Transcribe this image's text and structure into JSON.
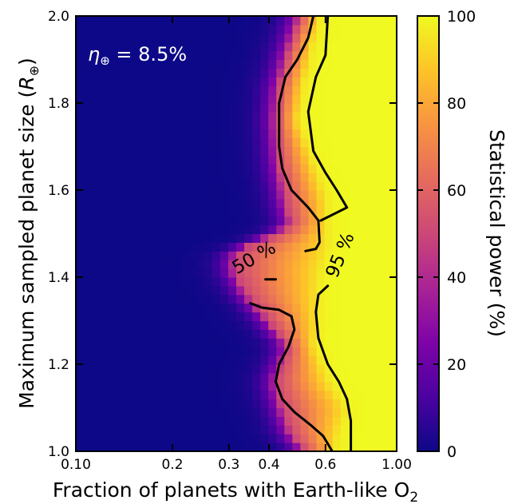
{
  "chart_data": {
    "type": "heatmap",
    "x_label": "Fraction of planets with Earth-like O",
    "x_label_subscript": "2",
    "y_label_main": "Maximum sampled planet size (",
    "y_label_var": "R",
    "y_label_sub": "⊕",
    "y_label_close": ")",
    "x_scale": "log",
    "x_range": [
      0.1,
      1.0
    ],
    "y_range": [
      1.0,
      2.0
    ],
    "x_ticks": [
      {
        "value": 0.1,
        "label": "0.10"
      },
      {
        "value": 0.2,
        "label": "0.2"
      },
      {
        "value": 0.3,
        "label": "0.3"
      },
      {
        "value": 0.4,
        "label": "0.4"
      },
      {
        "value": 0.6,
        "label": "0.6"
      },
      {
        "value": 1.0,
        "label": "1.00"
      }
    ],
    "y_ticks": [
      {
        "value": 1.0,
        "label": "1.0"
      },
      {
        "value": 1.2,
        "label": "1.2"
      },
      {
        "value": 1.4,
        "label": "1.4"
      },
      {
        "value": 1.6,
        "label": "1.6"
      },
      {
        "value": 1.8,
        "label": "1.8"
      },
      {
        "value": 2.0,
        "label": "2.0"
      }
    ],
    "annotation": {
      "symbol": "η",
      "subscript": "⊕",
      "text": " = 8.5%"
    },
    "colorbar": {
      "label": "Statistical power (%)",
      "range": [
        0,
        100
      ],
      "ticks": [
        "0",
        "20",
        "40",
        "60",
        "80",
        "100"
      ],
      "colormap": "plasma"
    },
    "power_transition": [
      {
        "y": 1.0,
        "x50": 0.52,
        "x95": 0.64
      },
      {
        "y": 1.04,
        "x50": 0.47,
        "x95": 0.65
      },
      {
        "y": 1.1,
        "x50": 0.44,
        "x95": 0.69
      },
      {
        "y": 1.16,
        "x50": 0.42,
        "x95": 0.61
      },
      {
        "y": 1.24,
        "x50": 0.46,
        "x95": 0.55
      },
      {
        "y": 1.3,
        "x50": 0.4,
        "x95": 0.56
      },
      {
        "y": 1.36,
        "x50": 0.34,
        "x95": 0.56
      },
      {
        "y": 1.42,
        "x50": 0.31,
        "x95": 0.57
      },
      {
        "y": 1.46,
        "x50": 0.32,
        "x95": 0.6
      },
      {
        "y": 1.52,
        "x50": 0.47,
        "x95": 0.6
      },
      {
        "y": 1.58,
        "x50": 0.45,
        "x95": 0.6
      },
      {
        "y": 1.66,
        "x50": 0.43,
        "x95": 0.55
      },
      {
        "y": 1.76,
        "x50": 0.42,
        "x95": 0.49
      },
      {
        "y": 1.84,
        "x50": 0.43,
        "x95": 0.51
      },
      {
        "y": 1.92,
        "x50": 0.46,
        "x95": 0.54
      },
      {
        "y": 2.0,
        "x50": 0.5,
        "x95": 0.57
      }
    ],
    "contours": [
      {
        "label": "50 %",
        "label_pos": {
          "x": 0.36,
          "y": 1.443
        },
        "label_rotation": -30,
        "points": [
          [
            0.35,
            1.34
          ],
          [
            0.38,
            1.33
          ],
          [
            0.43,
            1.325
          ],
          [
            0.47,
            1.31
          ],
          [
            0.48,
            1.28
          ],
          [
            0.46,
            1.24
          ],
          [
            0.43,
            1.2
          ],
          [
            0.42,
            1.16
          ],
          [
            0.44,
            1.12
          ],
          [
            0.48,
            1.09
          ],
          [
            0.54,
            1.06
          ],
          [
            0.59,
            1.035
          ],
          [
            0.63,
            1.0
          ]
        ]
      },
      {
        "label": "",
        "points": [
          [
            0.52,
            1.46
          ],
          [
            0.56,
            1.465
          ],
          [
            0.575,
            1.48
          ],
          [
            0.57,
            1.53
          ],
          [
            0.53,
            1.56
          ],
          [
            0.47,
            1.6
          ],
          [
            0.44,
            1.65
          ],
          [
            0.43,
            1.7
          ],
          [
            0.43,
            1.8
          ],
          [
            0.45,
            1.86
          ],
          [
            0.49,
            1.9
          ],
          [
            0.53,
            1.95
          ],
          [
            0.55,
            2.0
          ]
        ]
      },
      {
        "label": "",
        "points": [
          [
            0.39,
            1.395
          ],
          [
            0.42,
            1.395
          ]
        ]
      },
      {
        "label": "95 %",
        "label_pos": {
          "x": 0.67,
          "y": 1.45
        },
        "label_rotation": -68,
        "points": [
          [
            0.61,
            1.38
          ],
          [
            0.57,
            1.36
          ],
          [
            0.56,
            1.32
          ],
          [
            0.57,
            1.26
          ],
          [
            0.61,
            1.2
          ],
          [
            0.66,
            1.16
          ],
          [
            0.7,
            1.12
          ],
          [
            0.72,
            1.07
          ],
          [
            0.72,
            1.0
          ]
        ]
      },
      {
        "label": "",
        "points": [
          [
            0.58,
            1.53
          ],
          [
            0.7,
            1.56
          ],
          [
            0.65,
            1.6
          ],
          [
            0.6,
            1.64
          ],
          [
            0.55,
            1.69
          ],
          [
            0.53,
            1.78
          ],
          [
            0.56,
            1.86
          ],
          [
            0.6,
            1.91
          ],
          [
            0.61,
            2.0
          ]
        ]
      }
    ]
  }
}
